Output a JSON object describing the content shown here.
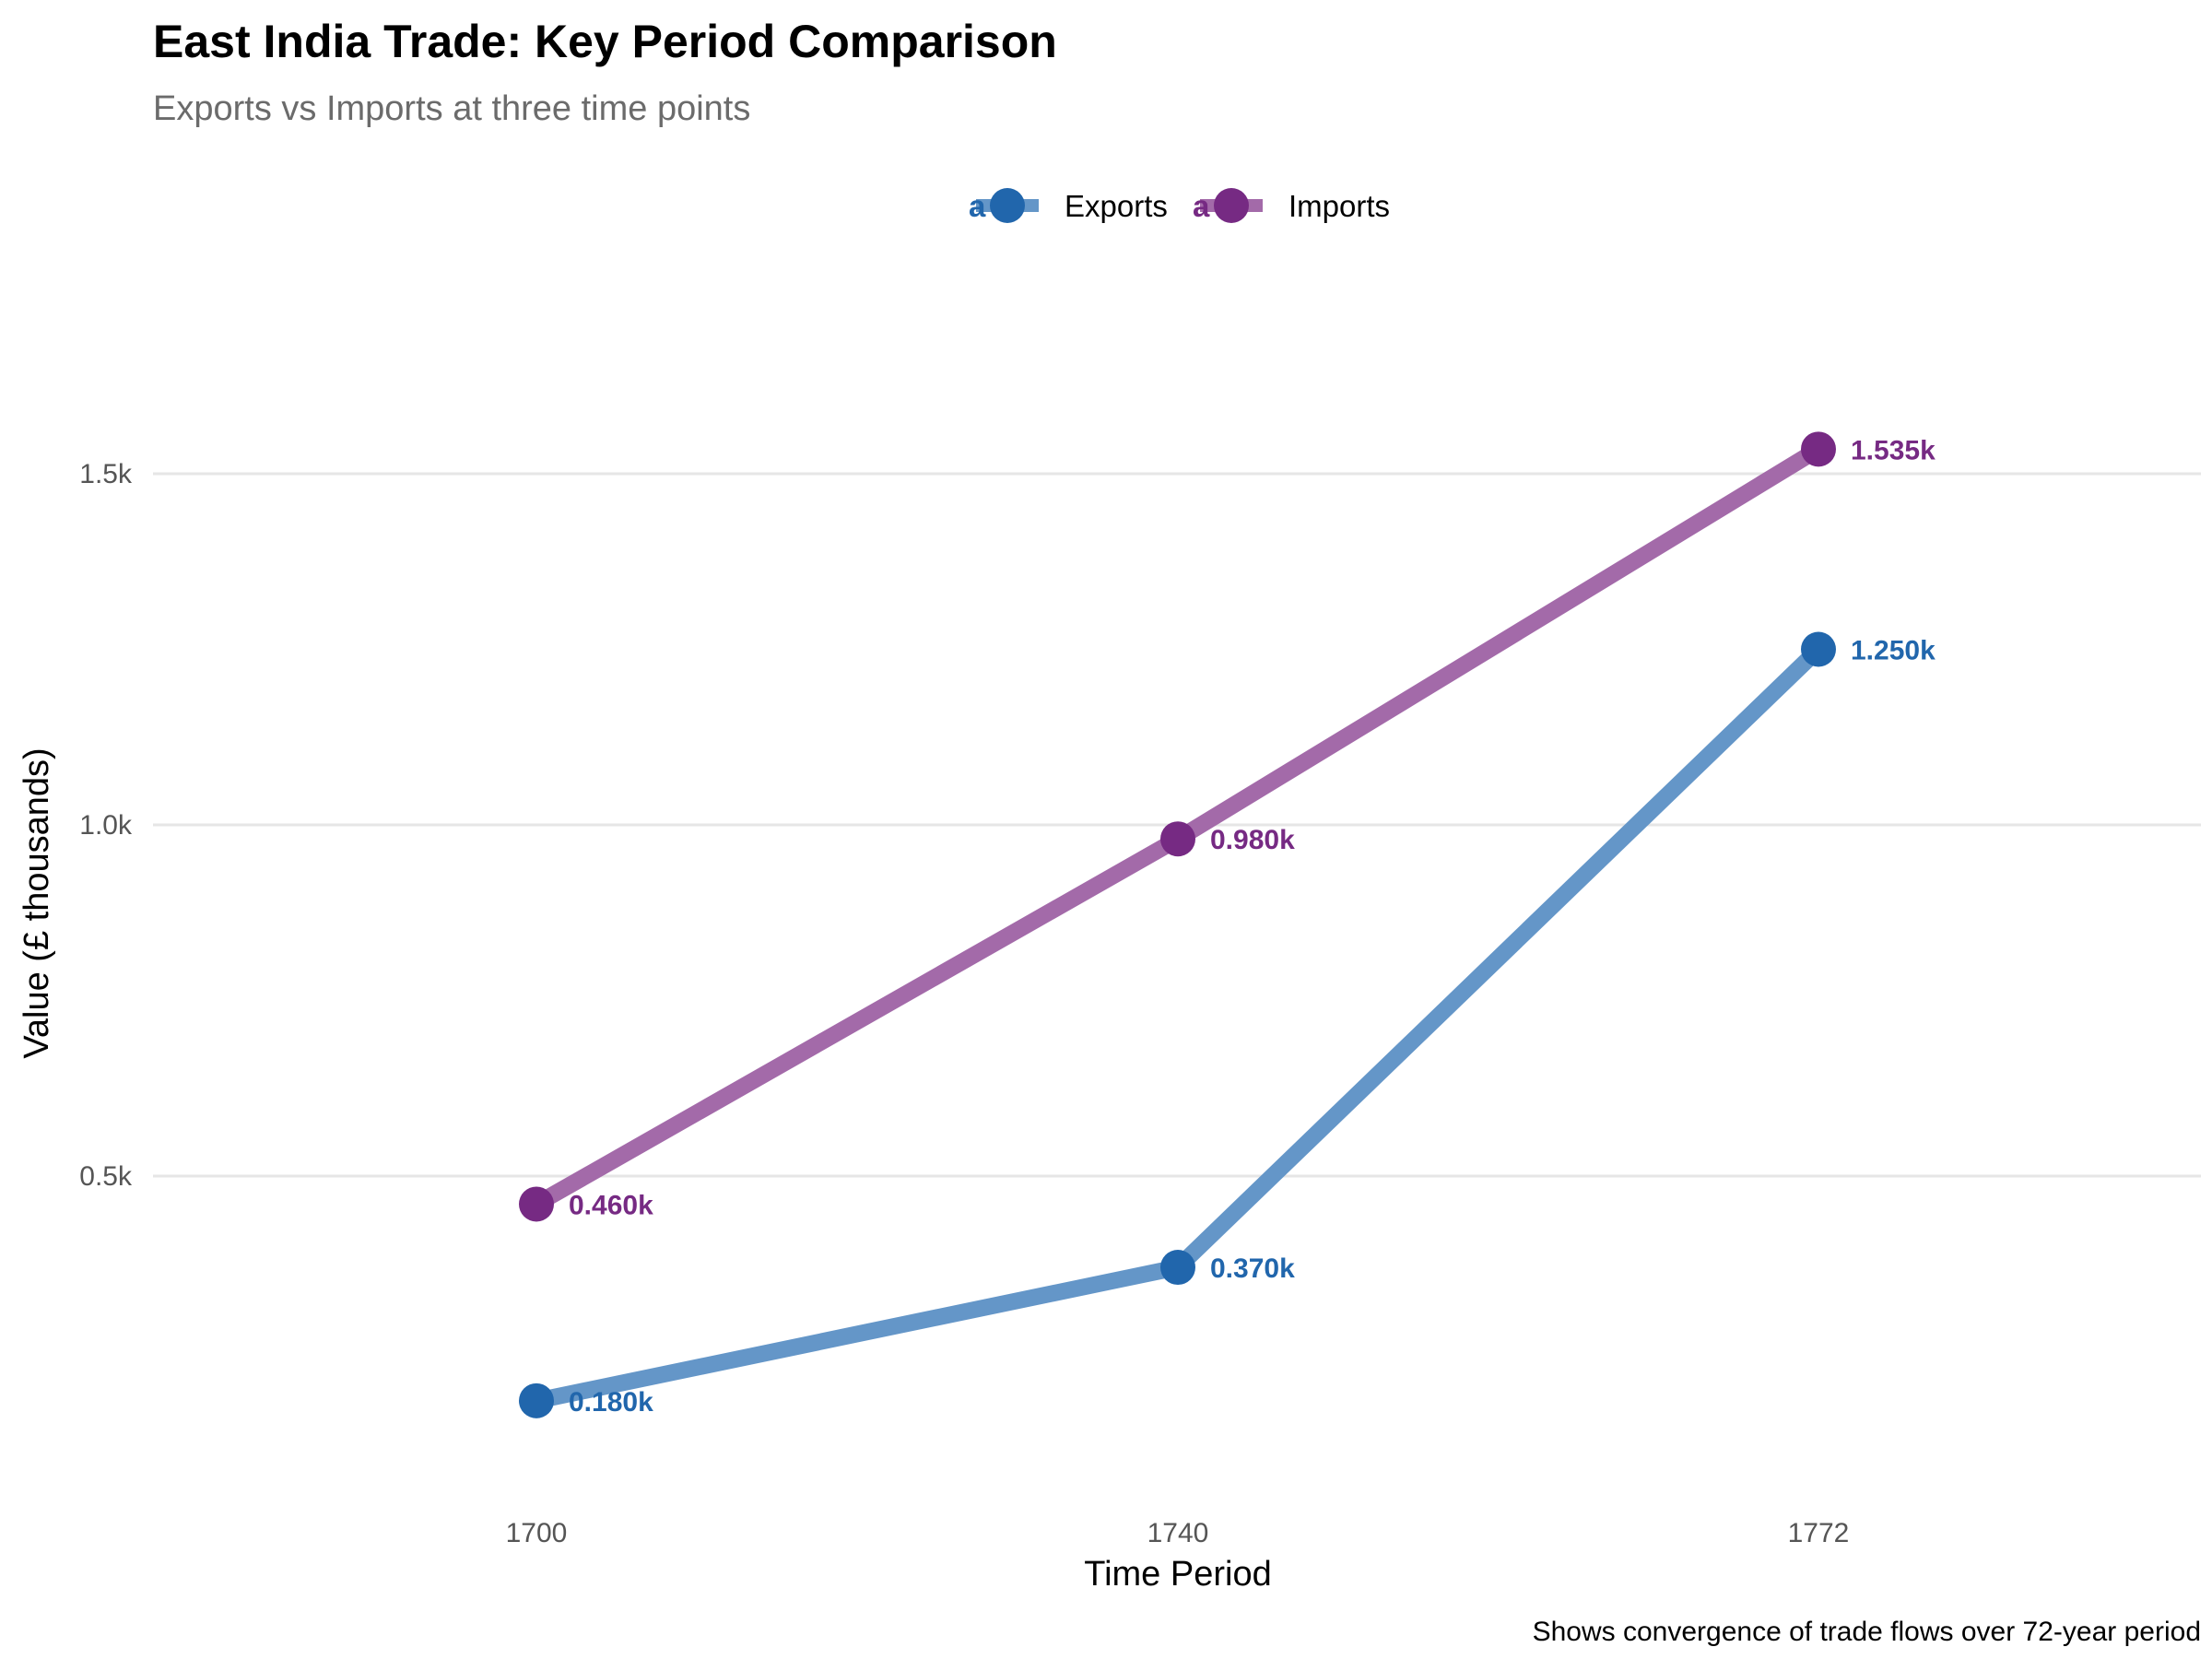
{
  "chart_data": {
    "type": "line",
    "title": "East India Trade: Key Period Comparison",
    "subtitle": "Exports vs Imports at three time points",
    "xlabel": "Time Period",
    "ylabel": "Value (£ thousands)",
    "caption": "Shows convergence of trade flows over 72-year period",
    "categories": [
      "1700",
      "1740",
      "1772"
    ],
    "ylim": [
      0.0,
      1.75
    ],
    "yticks": [
      0.5,
      1.0,
      1.5
    ],
    "ytick_labels": [
      "0.5k",
      "1.0k",
      "1.5k"
    ],
    "grid": "horizontal major lines",
    "legend_position": "top-center",
    "series": [
      {
        "name": "Exports",
        "color": "#2166ac",
        "line_color": "#6496c8",
        "values": [
          0.18,
          0.37,
          1.25
        ],
        "labels": [
          "0.180k",
          "0.370k",
          "1.250k"
        ]
      },
      {
        "name": "Imports",
        "color": "#762a83",
        "line_color": "#a36aa9",
        "values": [
          0.46,
          0.98,
          1.535
        ],
        "labels": [
          "0.460k",
          "0.980k",
          "1.535k"
        ]
      }
    ],
    "legend_glyph": "a"
  }
}
